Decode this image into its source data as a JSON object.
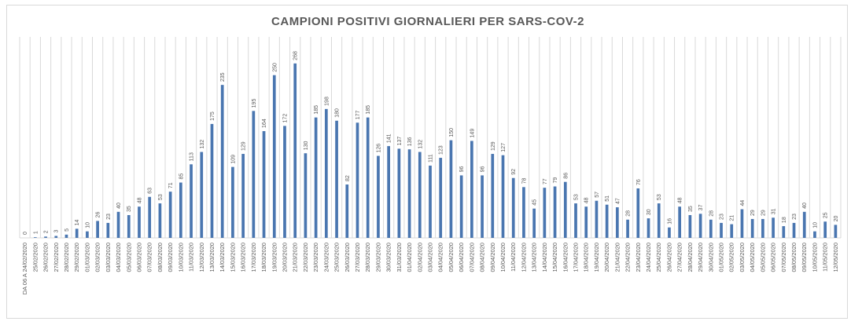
{
  "chart_data": {
    "type": "bar",
    "title": "CAMPIONI POSITIVI GIORNALIERI PER SARS-COV-2",
    "xlabel": "",
    "ylabel": "",
    "ylim": [
      0,
      275
    ],
    "grid": "vertical",
    "legend": "none",
    "bar_color": "#4a76b0",
    "gridline_color": "#d9d9d9",
    "label_color": "#595959",
    "categories": [
      "DA 06  A 24/02/2020",
      "25/02/2020",
      "26/02/2020",
      "27/02/2020",
      "28/02/2020",
      "29/02/2020",
      "01/03/2020",
      "02/03/2020",
      "03/03/2020",
      "04/03/2020",
      "05/03/2020",
      "06/03/2020",
      "07/03/2020",
      "08/03/2020",
      "09/03/2020",
      "10/03/2020",
      "11/03/2020",
      "12/03/2020",
      "13/03/2020",
      "14/03/2020",
      "15/03/2020",
      "16/03/2020",
      "17/03/2020",
      "18/03/2020",
      "19/03/2020",
      "20/03/2020",
      "21/03/2020",
      "22/03/2020",
      "23/03/2020",
      "24/03/2020",
      "25/03/2020",
      "26/03/2020",
      "27/03/2020",
      "28/03/2020",
      "29/03/2020",
      "30/03/2020",
      "31/03/2020",
      "01/04/2020",
      "02/04/2020",
      "03/04/2020",
      "04/04/2020",
      "05/04/2020",
      "06/04/2020",
      "07/04/2020",
      "08/04/2020",
      "09/04/2020",
      "10/04/2020",
      "11/04/2020",
      "12/04/2020",
      "13/04/2020",
      "14/04/2020",
      "15/04/2020",
      "16/04/2020",
      "17/04/2020",
      "18/04/2020",
      "19/04/2020",
      "20/04/2020",
      "21/04/2020",
      "22/04/2020",
      "23/04/2020",
      "24/04/2020",
      "25/04/2020",
      "26/04/2020",
      "27/04/2020",
      "28/04/2020",
      "29/04/2020",
      "30/04/2020",
      "01/05/2020",
      "02/05/2020",
      "03/05/2020",
      "04/05/2020",
      "05/05/2020",
      "06/05/2020",
      "07/05/2020",
      "08/05/2020",
      "09/05/2020",
      "10/05/2020",
      "11/05/2020",
      "12/05/2020"
    ],
    "values": [
      0,
      1,
      2,
      3,
      5,
      14,
      10,
      26,
      23,
      40,
      35,
      48,
      63,
      53,
      71,
      85,
      113,
      132,
      175,
      235,
      109,
      129,
      195,
      164,
      250,
      172,
      268,
      130,
      185,
      198,
      180,
      82,
      177,
      185,
      126,
      141,
      137,
      136,
      132,
      111,
      123,
      150,
      96,
      149,
      96,
      129,
      127,
      92,
      78,
      45,
      77,
      79,
      86,
      53,
      48,
      57,
      51,
      47,
      28,
      76,
      30,
      53,
      16,
      48,
      35,
      37,
      28,
      23,
      21,
      44,
      29,
      29,
      31,
      18,
      23,
      40,
      10,
      25,
      20
    ]
  }
}
